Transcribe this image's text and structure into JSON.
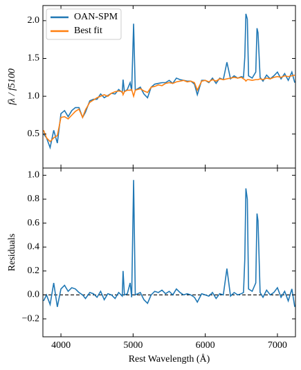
{
  "chart_data": [
    {
      "type": "line",
      "ylabel": "fλ / f5100",
      "legend": "upper left",
      "xlim": [
        3750,
        7250
      ],
      "ylim": [
        0.05,
        2.2
      ],
      "yticks": [
        0.5,
        {
          "value": 1,
          "label": "1.0"
        },
        1.5,
        {
          "value": 2,
          "label": "2.0"
        }
      ],
      "x": [
        3760,
        3800,
        3850,
        3900,
        3950,
        4000,
        4050,
        4100,
        4150,
        4200,
        4250,
        4300,
        4340,
        4400,
        4450,
        4500,
        4550,
        4600,
        4650,
        4700,
        4750,
        4800,
        4850,
        4861,
        4880,
        4920,
        4959,
        4980,
        5007,
        5030,
        5100,
        5150,
        5200,
        5250,
        5300,
        5350,
        5400,
        5450,
        5500,
        5550,
        5600,
        5650,
        5700,
        5750,
        5800,
        5850,
        5890,
        5950,
        6000,
        6050,
        6100,
        6150,
        6200,
        6250,
        6300,
        6350,
        6400,
        6450,
        6500,
        6530,
        6548,
        6563,
        6583,
        6600,
        6650,
        6700,
        6717,
        6731,
        6760,
        6800,
        6850,
        6900,
        6950,
        7000,
        7050,
        7100,
        7150,
        7200,
        7240
      ],
      "series": [
        {
          "name": "OAN-SPM",
          "color": "#1f77b4",
          "values": [
            0.5,
            0.45,
            0.32,
            0.55,
            0.38,
            0.77,
            0.81,
            0.73,
            0.81,
            0.85,
            0.85,
            0.72,
            0.79,
            0.94,
            0.96,
            0.96,
            1.03,
            0.98,
            1.01,
            1.04,
            1.03,
            1.09,
            1.05,
            1.22,
            1.06,
            1.09,
            1.18,
            1.07,
            1.96,
            1.08,
            1.12,
            1.03,
            0.98,
            1.12,
            1.16,
            1.17,
            1.18,
            1.18,
            1.21,
            1.17,
            1.24,
            1.22,
            1.21,
            1.2,
            1.2,
            1.16,
            1.02,
            1.21,
            1.21,
            1.18,
            1.24,
            1.17,
            1.24,
            1.22,
            1.45,
            1.23,
            1.27,
            1.24,
            1.26,
            1.25,
            1.52,
            2.09,
            2.02,
            1.27,
            1.24,
            1.32,
            1.9,
            1.84,
            1.25,
            1.2,
            1.28,
            1.23,
            1.27,
            1.32,
            1.23,
            1.3,
            1.21,
            1.32,
            1.18
          ]
        },
        {
          "name": "Best fit",
          "color": "#ff7f0e",
          "values": [
            0.55,
            0.45,
            0.4,
            0.45,
            0.48,
            0.72,
            0.73,
            0.7,
            0.75,
            0.8,
            0.83,
            0.72,
            0.82,
            0.92,
            0.95,
            0.98,
            1.0,
            1.02,
            1.0,
            1.04,
            1.06,
            1.07,
            1.06,
            1.02,
            1.06,
            1.08,
            1.08,
            1.09,
            1.0,
            1.08,
            1.1,
            1.07,
            1.05,
            1.12,
            1.13,
            1.15,
            1.14,
            1.17,
            1.18,
            1.17,
            1.19,
            1.2,
            1.21,
            1.19,
            1.2,
            1.18,
            1.08,
            1.2,
            1.21,
            1.19,
            1.22,
            1.2,
            1.23,
            1.22,
            1.23,
            1.24,
            1.25,
            1.24,
            1.25,
            1.23,
            1.22,
            1.2,
            1.22,
            1.22,
            1.21,
            1.22,
            1.22,
            1.22,
            1.23,
            1.22,
            1.24,
            1.23,
            1.25,
            1.26,
            1.25,
            1.27,
            1.26,
            1.27,
            1.28
          ]
        }
      ]
    },
    {
      "type": "line",
      "xlabel": "Rest Wavelength (Å)",
      "ylabel": "Residuals",
      "xlim": [
        3750,
        7250
      ],
      "ylim": [
        -0.35,
        1.06
      ],
      "xticks": [
        4000,
        5000,
        6000,
        7000
      ],
      "yticks": [
        {
          "value": -0.2,
          "label": "−0.2"
        },
        {
          "value": 0,
          "label": "0.0"
        },
        0.2,
        0.4,
        0.6,
        0.8,
        {
          "value": 1,
          "label": "1.0"
        }
      ],
      "hline": 0,
      "x": [
        3760,
        3800,
        3850,
        3900,
        3950,
        4000,
        4050,
        4100,
        4150,
        4200,
        4250,
        4300,
        4340,
        4400,
        4450,
        4500,
        4550,
        4600,
        4650,
        4700,
        4750,
        4800,
        4850,
        4861,
        4880,
        4920,
        4959,
        4980,
        5007,
        5030,
        5100,
        5150,
        5200,
        5250,
        5300,
        5350,
        5400,
        5450,
        5500,
        5550,
        5600,
        5650,
        5700,
        5750,
        5800,
        5850,
        5890,
        5950,
        6000,
        6050,
        6100,
        6150,
        6200,
        6250,
        6300,
        6350,
        6400,
        6450,
        6500,
        6530,
        6548,
        6563,
        6583,
        6600,
        6650,
        6700,
        6717,
        6731,
        6760,
        6800,
        6850,
        6900,
        6950,
        7000,
        7050,
        7100,
        7150,
        7200,
        7240
      ],
      "series": [
        {
          "name": "Residuals",
          "color": "#1f77b4",
          "values": [
            -0.05,
            0.0,
            -0.08,
            0.1,
            -0.1,
            0.05,
            0.08,
            0.03,
            0.06,
            0.05,
            0.02,
            0.0,
            -0.03,
            0.02,
            0.01,
            -0.02,
            0.03,
            -0.04,
            0.01,
            0.0,
            -0.03,
            0.02,
            -0.01,
            0.2,
            0.0,
            0.01,
            0.1,
            -0.02,
            0.96,
            0.0,
            0.02,
            -0.04,
            -0.07,
            0.0,
            0.03,
            0.02,
            0.04,
            0.01,
            0.03,
            0.0,
            0.05,
            0.02,
            0.0,
            0.01,
            0.0,
            -0.02,
            -0.06,
            0.01,
            0.0,
            -0.01,
            0.02,
            -0.03,
            0.01,
            0.0,
            0.22,
            -0.01,
            0.02,
            0.0,
            0.01,
            0.02,
            0.3,
            0.89,
            0.8,
            0.05,
            0.03,
            0.1,
            0.68,
            0.62,
            0.02,
            -0.02,
            0.04,
            0.0,
            0.02,
            0.06,
            -0.02,
            0.03,
            -0.05,
            0.05,
            -0.1
          ]
        }
      ]
    }
  ]
}
